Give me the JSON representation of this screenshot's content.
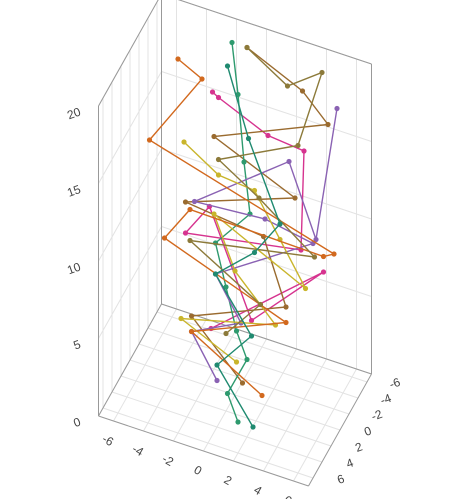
{
  "chart_data": {
    "type": "scatter3d",
    "mode": "lines+markers",
    "xlim": [
      -7,
      7
    ],
    "ylim": [
      -7,
      7
    ],
    "zlim": [
      0,
      20
    ],
    "xticks": [
      -6,
      -4,
      -2,
      0,
      2,
      4,
      6
    ],
    "yticks": [
      -6,
      -4,
      -2,
      0,
      2,
      4,
      6
    ],
    "zticks": [
      0,
      5,
      10,
      15,
      20
    ],
    "grid": true,
    "series": [
      {
        "color": "#d6338f",
        "x": [
          -3,
          -2,
          1,
          4,
          5,
          -3,
          -2,
          2,
          5,
          -1
        ],
        "y": [
          -5,
          -3,
          -4,
          -2,
          2,
          1,
          -1,
          3,
          -3,
          2
        ],
        "z": [
          16,
          17,
          15,
          16,
          12,
          10,
          11,
          7,
          8,
          5
        ]
      },
      {
        "color": "#9a6b2f",
        "x": [
          -1,
          3,
          5,
          -2,
          4,
          -3,
          1,
          4,
          -2,
          2
        ],
        "y": [
          -6,
          -5,
          -4,
          -2,
          0,
          1,
          -3,
          2,
          3,
          5
        ],
        "z": [
          19,
          18,
          17,
          15,
          14,
          12,
          9,
          8,
          6,
          4
        ]
      },
      {
        "color": "#2e9a6e",
        "x": [
          -2,
          -1,
          0,
          1,
          -1,
          0,
          1,
          2,
          1,
          2
        ],
        "y": [
          -6,
          -4,
          -2,
          0,
          1,
          2,
          3,
          4,
          5,
          6
        ],
        "z": [
          19,
          17,
          14,
          12,
          10,
          8,
          6,
          5,
          3,
          2
        ]
      },
      {
        "color": "#8a62b3",
        "x": [
          5,
          6,
          3,
          -3,
          2,
          4,
          -1,
          1,
          -2,
          0
        ],
        "y": [
          -6,
          2,
          -2,
          -1,
          0,
          -4,
          1,
          2,
          3,
          4
        ],
        "z": [
          17,
          13,
          15,
          11,
          12,
          9,
          8,
          6,
          5,
          3
        ]
      },
      {
        "color": "#c9b52c",
        "x": [
          -4,
          -2,
          1,
          3,
          5,
          -2,
          0,
          3,
          -3,
          1
        ],
        "y": [
          -2,
          -3,
          -1,
          0,
          1,
          -2,
          0,
          1,
          2,
          3
        ],
        "z": [
          14,
          12,
          13,
          11,
          9,
          10,
          8,
          6,
          5,
          4
        ]
      },
      {
        "color": "#d2691e",
        "x": [
          -5,
          -4,
          -6,
          6,
          5,
          -3,
          -5,
          4,
          -2,
          3
        ],
        "y": [
          -4,
          -6,
          -1,
          -2,
          -3,
          0,
          -1,
          2,
          3,
          4
        ],
        "z": [
          18,
          16,
          14,
          10,
          9,
          11,
          8,
          7,
          5,
          3
        ]
      },
      {
        "color": "#8c7a3a",
        "x": [
          -1,
          2,
          4,
          3,
          -2,
          1,
          5,
          -3,
          2,
          0
        ],
        "y": [
          -6,
          -5,
          -6,
          -4,
          -3,
          -2,
          -1,
          0,
          1,
          2
        ],
        "z": [
          19,
          18,
          19,
          15,
          13,
          12,
          10,
          9,
          7,
          5
        ]
      },
      {
        "color": "#1f8a70",
        "x": [
          -2,
          0,
          3,
          1,
          -1,
          2,
          0,
          3
        ],
        "y": [
          -5,
          -3,
          0,
          -1,
          1,
          3,
          4,
          6
        ],
        "z": [
          18,
          15,
          12,
          9,
          8,
          6,
          4,
          2
        ]
      }
    ]
  }
}
